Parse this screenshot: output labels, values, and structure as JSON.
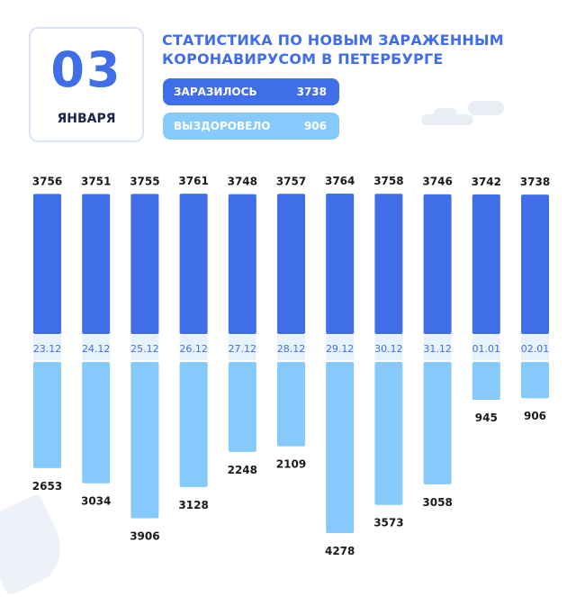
{
  "header": {
    "day": "03",
    "month": "ЯНВАРЯ",
    "title_line1": "СТАТИСТИКА ПО НОВЫМ ЗАРАЖЕННЫМ",
    "title_line2": "КОРОНАВИРУСОМ В ПЕТЕРБУРГЕ",
    "infected_label": "ЗАРАЗИЛОСЬ",
    "infected_value": "3738",
    "recovered_label": "ВЫЗДОРОВЕЛО",
    "recovered_value": "906"
  },
  "colors": {
    "infected": "#3f6ee8",
    "recovered": "#86c9fb",
    "text_dark": "#1a1a1a",
    "date_text": "#3f6ee8"
  },
  "chart_data": {
    "type": "bar",
    "categories": [
      "23.12",
      "24.12",
      "25.12",
      "26.12",
      "27.12",
      "28.12",
      "29.12",
      "30.12",
      "31.12",
      "01.01",
      "02.01"
    ],
    "series": [
      {
        "name": "ЗАРАЗИЛОСЬ",
        "values": [
          3756,
          3751,
          3755,
          3761,
          3748,
          3757,
          3764,
          3758,
          3746,
          3742,
          3738
        ]
      },
      {
        "name": "ВЫЗДОРОВЕЛО",
        "values": [
          2653,
          3034,
          3906,
          3128,
          2248,
          2109,
          4278,
          3573,
          3058,
          945,
          906
        ]
      }
    ],
    "title": "",
    "xlabel": "",
    "ylabel": "",
    "grid": false,
    "legend": "top"
  }
}
